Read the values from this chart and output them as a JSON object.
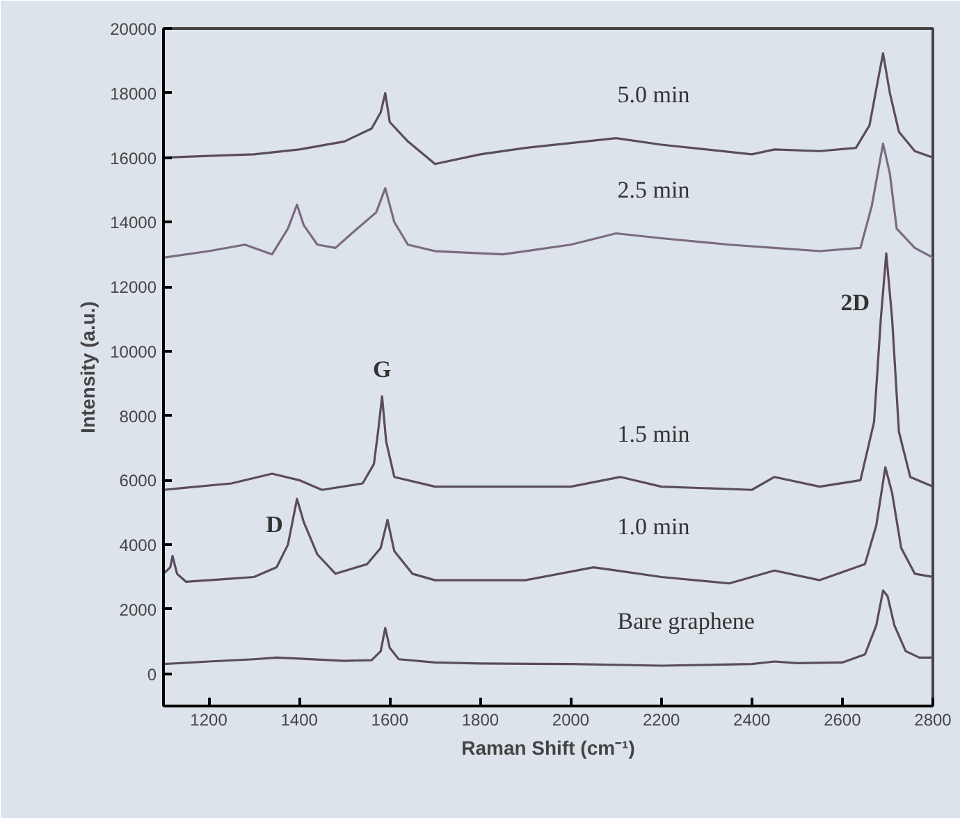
{
  "chart_data": {
    "type": "line",
    "xlabel": "Raman Shift (cm⁻¹)",
    "ylabel": "Intensity (a.u.)",
    "xlim": [
      1100,
      2800
    ],
    "xticks": [
      1200,
      1400,
      1600,
      1800,
      2000,
      2200,
      2400,
      2600,
      2800
    ],
    "ylim": [
      -1000,
      20000
    ],
    "yticks": [
      0,
      2000,
      4000,
      6000,
      8000,
      10000,
      12000,
      14000,
      16000,
      18000,
      20000
    ],
    "grid": false,
    "line_style": "solid",
    "marker": "none",
    "series": [
      {
        "name": "Bare graphene",
        "color": "#5b4b5e",
        "x": [
          1100,
          1200,
          1300,
          1350,
          1400,
          1500,
          1560,
          1580,
          1590,
          1600,
          1620,
          1700,
          1800,
          2000,
          2200,
          2400,
          2450,
          2500,
          2600,
          2650,
          2675,
          2690,
          2700,
          2715,
          2740,
          2770,
          2800
        ],
        "values": [
          300,
          380,
          450,
          500,
          470,
          400,
          420,
          700,
          1420,
          800,
          450,
          350,
          320,
          300,
          250,
          300,
          380,
          330,
          350,
          600,
          1500,
          2580,
          2400,
          1500,
          700,
          500,
          500
        ]
      },
      {
        "name": "1.0 min",
        "color": "#5b4b5e",
        "x": [
          1100,
          1115,
          1120,
          1130,
          1150,
          1250,
          1300,
          1350,
          1375,
          1395,
          1410,
          1440,
          1480,
          1550,
          1580,
          1595,
          1610,
          1650,
          1700,
          1900,
          2050,
          2100,
          2200,
          2350,
          2450,
          2550,
          2650,
          2675,
          2695,
          2710,
          2730,
          2760,
          2800
        ],
        "values": [
          3100,
          3300,
          3650,
          3100,
          2850,
          2950,
          3000,
          3300,
          4000,
          5420,
          4700,
          3700,
          3100,
          3400,
          3900,
          4770,
          3800,
          3100,
          2900,
          2900,
          3300,
          3200,
          3000,
          2800,
          3200,
          2900,
          3400,
          4600,
          6400,
          5600,
          3900,
          3100,
          3000
        ]
      },
      {
        "name": "1.5 min",
        "color": "#5b4b5e",
        "x": [
          1100,
          1250,
          1340,
          1400,
          1450,
          1540,
          1565,
          1575,
          1583,
          1592,
          1610,
          1700,
          2000,
          2110,
          2200,
          2400,
          2450,
          2550,
          2640,
          2670,
          2685,
          2697,
          2710,
          2725,
          2750,
          2800
        ],
        "values": [
          5700,
          5900,
          6200,
          6000,
          5700,
          5900,
          6500,
          7600,
          8600,
          7200,
          6100,
          5800,
          5800,
          6100,
          5800,
          5700,
          6100,
          5800,
          6000,
          7800,
          11000,
          13030,
          11000,
          7500,
          6100,
          5800
        ]
      },
      {
        "name": "2.5 min",
        "color": "#7b6b80",
        "x": [
          1100,
          1200,
          1280,
          1340,
          1375,
          1395,
          1410,
          1440,
          1480,
          1520,
          1570,
          1590,
          1610,
          1640,
          1700,
          1850,
          2000,
          2100,
          2200,
          2350,
          2450,
          2550,
          2640,
          2665,
          2690,
          2705,
          2720,
          2760,
          2800
        ],
        "values": [
          12900,
          13100,
          13300,
          13000,
          13800,
          14540,
          13900,
          13300,
          13200,
          13700,
          14300,
          15050,
          14000,
          13300,
          13100,
          13000,
          13300,
          13650,
          13500,
          13300,
          13200,
          13100,
          13200,
          14500,
          16430,
          15500,
          13800,
          13200,
          12900
        ]
      },
      {
        "name": "5.0 min",
        "color": "#5b4b5e",
        "x": [
          1100,
          1200,
          1300,
          1400,
          1500,
          1560,
          1580,
          1590,
          1600,
          1640,
          1700,
          1800,
          1900,
          2000,
          2100,
          2200,
          2300,
          2400,
          2450,
          2550,
          2630,
          2660,
          2680,
          2690,
          2705,
          2725,
          2760,
          2800
        ],
        "values": [
          16000,
          16050,
          16100,
          16250,
          16500,
          16900,
          17400,
          18000,
          17100,
          16500,
          15800,
          16100,
          16300,
          16450,
          16600,
          16400,
          16250,
          16100,
          16250,
          16200,
          16300,
          17000,
          18500,
          19230,
          18000,
          16800,
          16200,
          16000
        ]
      }
    ],
    "annotations": [
      {
        "text": "D",
        "x": 1395,
        "y": 5420
      },
      {
        "text": "G",
        "x": 1583,
        "y": 8600
      },
      {
        "text": "2D",
        "x": 2697,
        "y": 13030
      }
    ]
  }
}
